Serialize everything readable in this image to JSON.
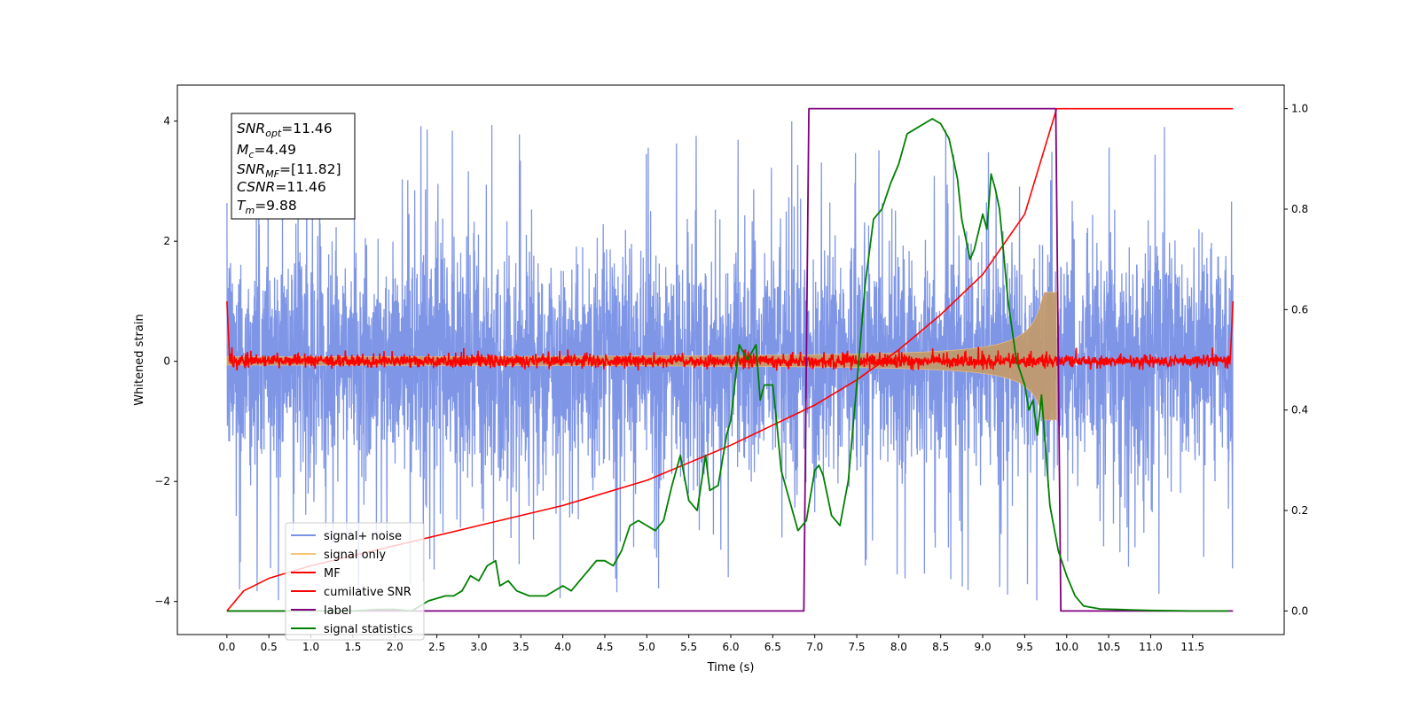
{
  "chart_data": {
    "type": "line",
    "xlabel": "Time (s)",
    "ylabel": "Whitened strain",
    "xlim": [
      -0.59,
      12.59
    ],
    "ylim_left": [
      -4.55,
      4.6
    ],
    "ylim_right": [
      -0.047,
      1.047
    ],
    "grid": false,
    "legend_position": "lower-left",
    "x_ticks": [
      "0.0",
      "0.5",
      "1.0",
      "1.5",
      "2.0",
      "2.5",
      "3.0",
      "3.5",
      "4.0",
      "4.5",
      "5.0",
      "5.5",
      "6.0",
      "6.5",
      "7.0",
      "7.5",
      "8.0",
      "8.5",
      "9.0",
      "9.5",
      "10.0",
      "10.5",
      "11.0",
      "11.5"
    ],
    "y_ticks_left": [
      "4",
      "2",
      "0",
      "−2",
      "−4"
    ],
    "y_ticks_right": [
      "1.0",
      "0.8",
      "0.6",
      "0.4",
      "0.2",
      "0.0"
    ],
    "annotation": {
      "snr_opt": {
        "sym": "SNR",
        "sub": "opt",
        "val": "=11.46"
      },
      "mc": {
        "sym": "M",
        "sub": "c",
        "val": "=4.49"
      },
      "snr_mf": {
        "sym": "SNR",
        "sub": "MF",
        "val": "=[11.82]"
      },
      "csnr": {
        "sym": "CSNR",
        "sub": "",
        "val": "=11.46"
      },
      "tm": {
        "sym": "T",
        "sub": "m",
        "val": "=9.88"
      }
    },
    "series": [
      {
        "name": "signal+ noise",
        "axis": "left",
        "color": "#7890e6",
        "description": "white noise, approx amplitude ±2.5, peaks to ±4.2",
        "t_range": [
          0.0,
          11.98
        ]
      },
      {
        "name": "signal only",
        "axis": "left",
        "color": "#c29a6e",
        "description": "chirp envelope growing to ±1.1 at t=9.88 s",
        "t_range": [
          0.0,
          9.88
        ]
      },
      {
        "name": "MF",
        "axis": "left",
        "color": "#ff0000",
        "description": "matched-filter output, noise about 0 with spikes to ~1.0 at edges",
        "t_range": [
          0.0,
          11.98
        ]
      },
      {
        "name": "cumilative SNR",
        "axis": "right",
        "color": "#ff0000",
        "points": [
          [
            0.0,
            0.0
          ],
          [
            0.2,
            0.04
          ],
          [
            0.5,
            0.065
          ],
          [
            1.0,
            0.09
          ],
          [
            2.0,
            0.13
          ],
          [
            3.0,
            0.17
          ],
          [
            4.0,
            0.21
          ],
          [
            5.0,
            0.26
          ],
          [
            6.0,
            0.33
          ],
          [
            7.0,
            0.41
          ],
          [
            7.5,
            0.46
          ],
          [
            8.0,
            0.52
          ],
          [
            8.5,
            0.59
          ],
          [
            9.0,
            0.67
          ],
          [
            9.5,
            0.79
          ],
          [
            9.88,
            1.0
          ],
          [
            11.98,
            1.0
          ]
        ]
      },
      {
        "name": "label",
        "axis": "right",
        "color": "#800080",
        "points": [
          [
            0.0,
            0.0
          ],
          [
            6.87,
            0.0
          ],
          [
            6.93,
            1.0
          ],
          [
            9.87,
            1.0
          ],
          [
            9.93,
            0.0
          ],
          [
            11.98,
            0.0
          ]
        ]
      },
      {
        "name": "signal statistics",
        "axis": "right",
        "color": "#008000",
        "points": [
          [
            0.0,
            0.0
          ],
          [
            0.5,
            0.0
          ],
          [
            1.0,
            0.0
          ],
          [
            1.5,
            0.0
          ],
          [
            1.8,
            0.003
          ],
          [
            2.0,
            0.003
          ],
          [
            2.2,
            0.0
          ],
          [
            2.4,
            0.02
          ],
          [
            2.6,
            0.03
          ],
          [
            2.7,
            0.03
          ],
          [
            2.8,
            0.04
          ],
          [
            2.9,
            0.07
          ],
          [
            3.0,
            0.06
          ],
          [
            3.1,
            0.09
          ],
          [
            3.2,
            0.1
          ],
          [
            3.25,
            0.05
          ],
          [
            3.35,
            0.06
          ],
          [
            3.45,
            0.04
          ],
          [
            3.6,
            0.03
          ],
          [
            3.8,
            0.03
          ],
          [
            4.0,
            0.05
          ],
          [
            4.1,
            0.04
          ],
          [
            4.2,
            0.06
          ],
          [
            4.3,
            0.08
          ],
          [
            4.4,
            0.1
          ],
          [
            4.5,
            0.1
          ],
          [
            4.6,
            0.09
          ],
          [
            4.7,
            0.12
          ],
          [
            4.8,
            0.17
          ],
          [
            4.9,
            0.18
          ],
          [
            5.0,
            0.17
          ],
          [
            5.1,
            0.16
          ],
          [
            5.2,
            0.18
          ],
          [
            5.3,
            0.25
          ],
          [
            5.4,
            0.31
          ],
          [
            5.5,
            0.22
          ],
          [
            5.6,
            0.2
          ],
          [
            5.7,
            0.31
          ],
          [
            5.75,
            0.24
          ],
          [
            5.85,
            0.25
          ],
          [
            5.95,
            0.35
          ],
          [
            6.0,
            0.38
          ],
          [
            6.1,
            0.53
          ],
          [
            6.2,
            0.5
          ],
          [
            6.3,
            0.53
          ],
          [
            6.35,
            0.42
          ],
          [
            6.4,
            0.45
          ],
          [
            6.5,
            0.45
          ],
          [
            6.55,
            0.37
          ],
          [
            6.6,
            0.28
          ],
          [
            6.7,
            0.22
          ],
          [
            6.8,
            0.16
          ],
          [
            6.9,
            0.18
          ],
          [
            7.0,
            0.28
          ],
          [
            7.05,
            0.29
          ],
          [
            7.1,
            0.27
          ],
          [
            7.2,
            0.19
          ],
          [
            7.3,
            0.17
          ],
          [
            7.4,
            0.26
          ],
          [
            7.5,
            0.45
          ],
          [
            7.6,
            0.65
          ],
          [
            7.7,
            0.78
          ],
          [
            7.8,
            0.8
          ],
          [
            7.9,
            0.85
          ],
          [
            8.0,
            0.89
          ],
          [
            8.1,
            0.95
          ],
          [
            8.2,
            0.96
          ],
          [
            8.3,
            0.97
          ],
          [
            8.4,
            0.98
          ],
          [
            8.5,
            0.97
          ],
          [
            8.6,
            0.94
          ],
          [
            8.7,
            0.86
          ],
          [
            8.75,
            0.78
          ],
          [
            8.8,
            0.74
          ],
          [
            8.85,
            0.7
          ],
          [
            8.9,
            0.72
          ],
          [
            9.0,
            0.79
          ],
          [
            9.05,
            0.76
          ],
          [
            9.1,
            0.87
          ],
          [
            9.15,
            0.84
          ],
          [
            9.2,
            0.8
          ],
          [
            9.3,
            0.62
          ],
          [
            9.4,
            0.5
          ],
          [
            9.5,
            0.45
          ],
          [
            9.55,
            0.4
          ],
          [
            9.6,
            0.42
          ],
          [
            9.65,
            0.35
          ],
          [
            9.7,
            0.43
          ],
          [
            9.8,
            0.21
          ],
          [
            9.9,
            0.12
          ],
          [
            10.0,
            0.07
          ],
          [
            10.1,
            0.03
          ],
          [
            10.2,
            0.01
          ],
          [
            10.4,
            0.004
          ],
          [
            10.6,
            0.003
          ],
          [
            10.8,
            0.002
          ],
          [
            11.0,
            0.001
          ],
          [
            11.5,
            0.0
          ],
          [
            11.93,
            0.0
          ]
        ]
      }
    ]
  }
}
